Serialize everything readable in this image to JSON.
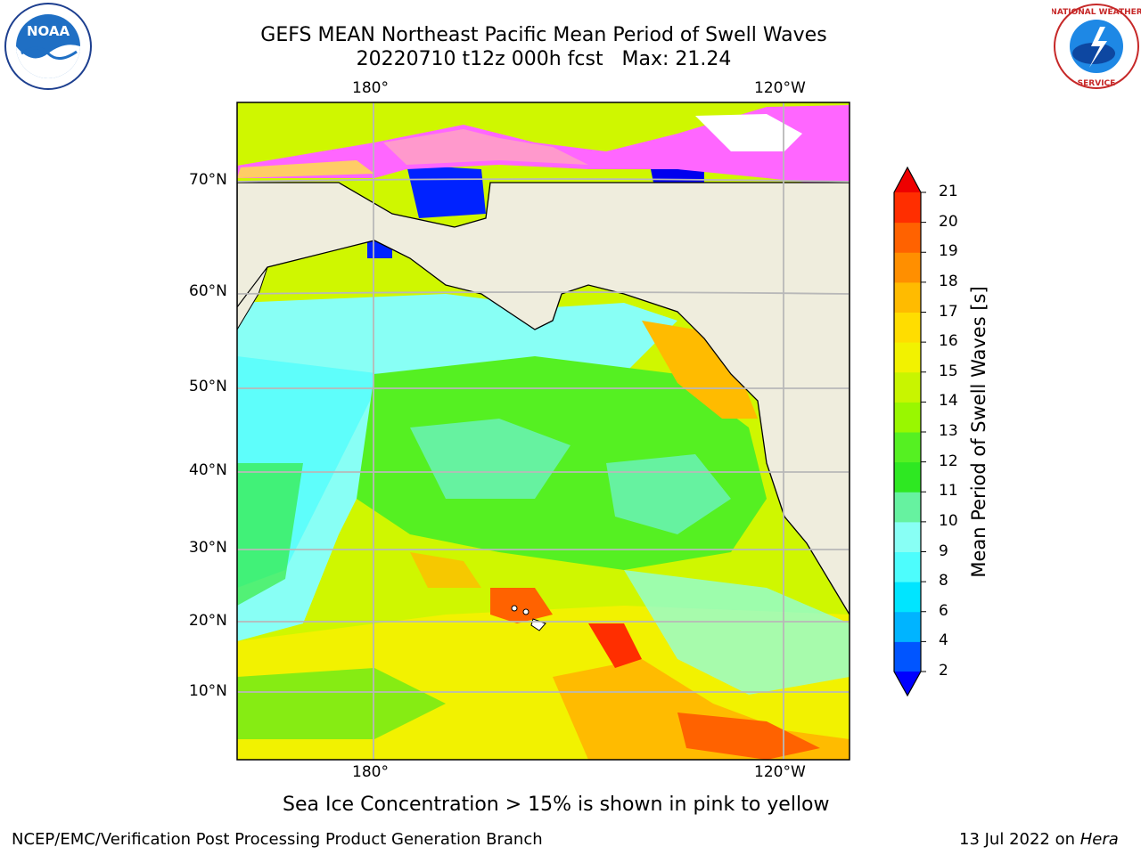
{
  "title": {
    "line1": "GEFS MEAN Northeast Pacific Mean Period of Swell Waves",
    "line2": "20220710 t12z 000h fcst   Max: 21.24"
  },
  "axes": {
    "top_lon": [
      "180°",
      "120°W"
    ],
    "bottom_lon": [
      "180°",
      "120°W"
    ],
    "lat": [
      "70°N",
      "60°N",
      "50°N",
      "40°N",
      "30°N",
      "20°N",
      "10°N"
    ]
  },
  "colorbar": {
    "label": "Mean Period of Swell Waves [s]",
    "ticks": [
      "2",
      "4",
      "6",
      "8",
      "9",
      "10",
      "11",
      "12",
      "13",
      "14",
      "15",
      "16",
      "17",
      "18",
      "19",
      "20",
      "21"
    ],
    "colors": [
      "#0055ff",
      "#00b4ff",
      "#00e5ff",
      "#4dfdfd",
      "#88fff5",
      "#66f2a0",
      "#2ee822",
      "#55f022",
      "#99f700",
      "#c8f500",
      "#f2f200",
      "#ffdd00",
      "#ffbb00",
      "#ff8f00",
      "#ff6200",
      "#ff2e00"
    ],
    "under_color": "#0000ff",
    "over_color": "#ee0000"
  },
  "map": {
    "land_color": "#efeddd",
    "grid_color": "#b8b8b8",
    "ice_colors": [
      "#ff66ff",
      "#ff99cc",
      "#ffcc66"
    ]
  },
  "logos": {
    "noaa": "NOAA",
    "nws": "NATIONAL WEATHER SERVICE"
  },
  "note": "Sea Ice Concentration > 15% is shown in pink to yellow",
  "footer": {
    "left": "NCEP/EMC/Verification Post Processing Product Generation Branch",
    "right_date": "13 Jul 2022 on ",
    "right_machine": "Hera"
  }
}
